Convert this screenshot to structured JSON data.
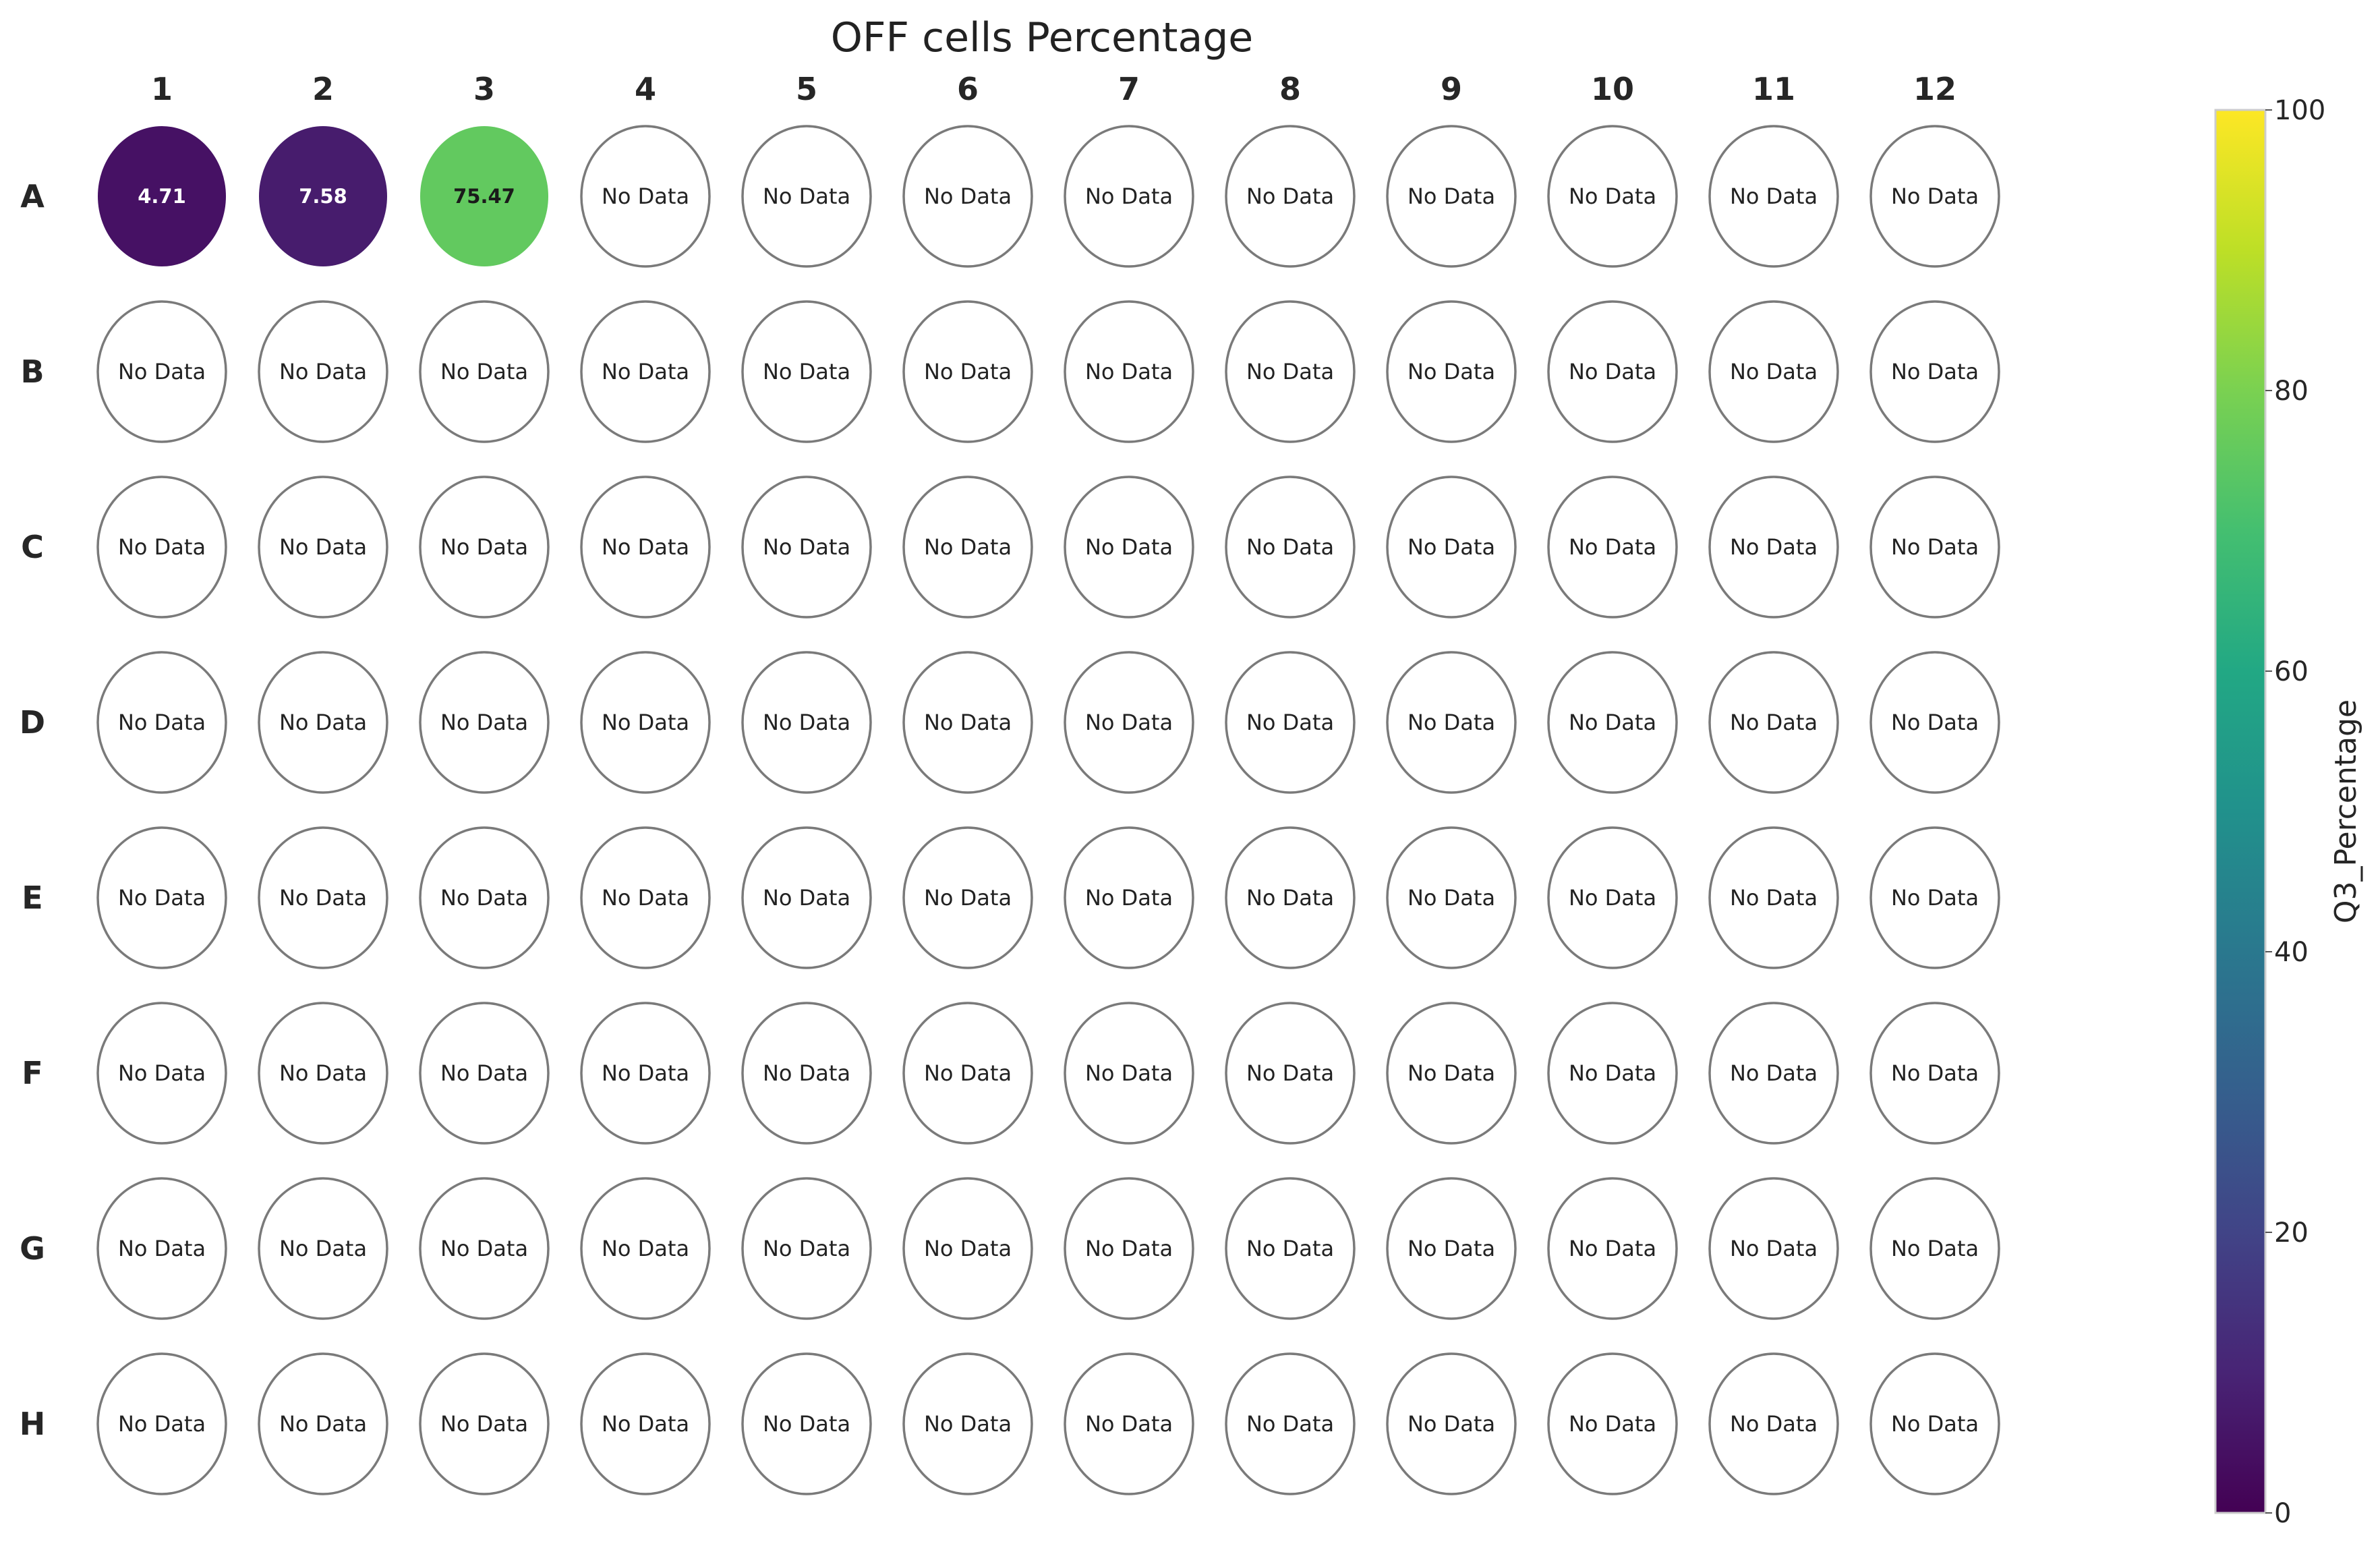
{
  "chart_data": {
    "type": "heatmap",
    "title": "OFF cells Percentage",
    "columns": [
      "1",
      "2",
      "3",
      "4",
      "5",
      "6",
      "7",
      "8",
      "9",
      "10",
      "11",
      "12"
    ],
    "rows": [
      "A",
      "B",
      "C",
      "D",
      "E",
      "F",
      "G",
      "H"
    ],
    "wells": [
      {
        "row": "A",
        "col": "1",
        "value": 4.71,
        "label": "4.71"
      },
      {
        "row": "A",
        "col": "2",
        "value": 7.58,
        "label": "7.58"
      },
      {
        "row": "A",
        "col": "3",
        "value": 75.47,
        "label": "75.47"
      }
    ],
    "missing_label": "No Data",
    "colorbar": {
      "label": "Q3_Percentage",
      "min": 0,
      "max": 100,
      "ticks": [
        "0",
        "20",
        "40",
        "60",
        "80",
        "100"
      ],
      "colormap": "viridis"
    },
    "colors": {
      "empty_fill": "#ffffff",
      "empty_stroke": "#7a7a7a"
    }
  }
}
